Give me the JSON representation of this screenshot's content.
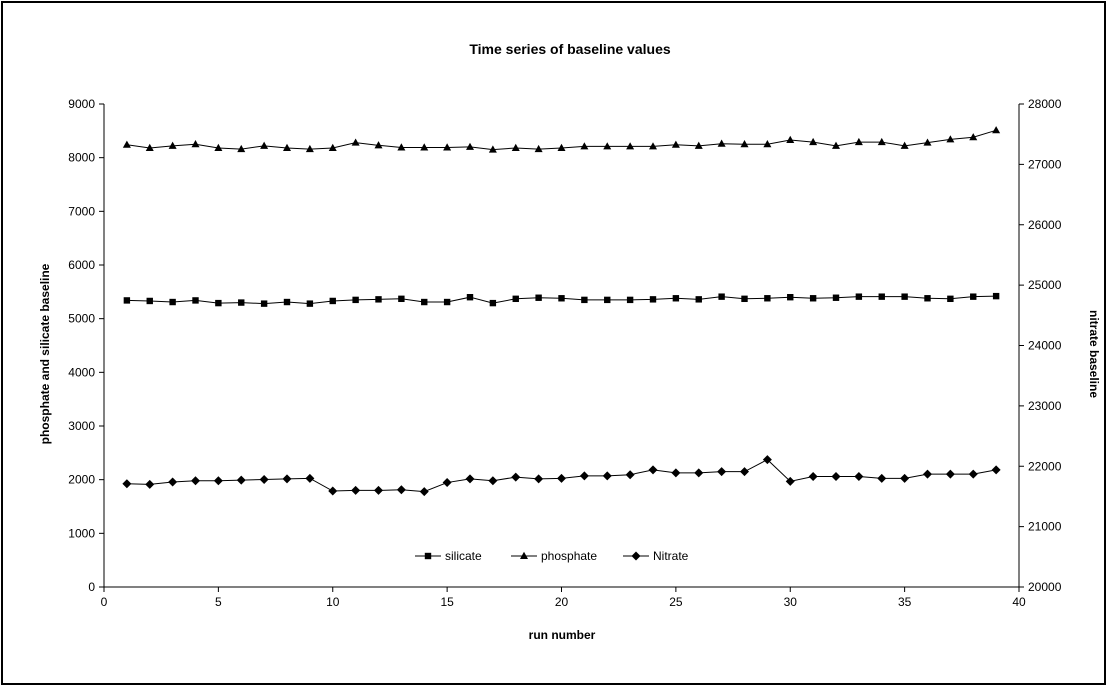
{
  "chart_data": {
    "type": "line",
    "title": "Time series of baseline values",
    "xlabel": "run number",
    "ylabel_left": "phosphate and silicate baseline",
    "ylabel_right": "nitrate baseline",
    "xlim": [
      0,
      40
    ],
    "ylim_left": [
      0,
      9000
    ],
    "ylim_right": [
      20000,
      28000
    ],
    "x_ticks": [
      "0",
      "5",
      "10",
      "15",
      "20",
      "25",
      "30",
      "35",
      "40"
    ],
    "y_ticks_left": [
      "0",
      "1000",
      "2000",
      "3000",
      "4000",
      "5000",
      "6000",
      "7000",
      "8000",
      "9000"
    ],
    "y_ticks_right": [
      "20000",
      "21000",
      "22000",
      "23000",
      "24000",
      "25000",
      "26000",
      "27000",
      "28000"
    ],
    "legend_position": "bottom-center",
    "grid": false,
    "x": [
      1,
      2,
      3,
      4,
      5,
      6,
      7,
      8,
      9,
      10,
      11,
      12,
      13,
      14,
      15,
      16,
      17,
      18,
      19,
      20,
      21,
      22,
      23,
      24,
      25,
      26,
      27,
      28,
      29,
      30,
      31,
      32,
      33,
      34,
      35,
      36,
      37,
      38,
      39
    ],
    "series": [
      {
        "name": "silicate",
        "axis": "left",
        "marker": "square",
        "values": [
          5340,
          5330,
          5310,
          5340,
          5290,
          5300,
          5280,
          5310,
          5280,
          5330,
          5350,
          5360,
          5370,
          5310,
          5310,
          5400,
          5290,
          5370,
          5390,
          5380,
          5350,
          5350,
          5350,
          5360,
          5380,
          5360,
          5410,
          5370,
          5380,
          5400,
          5380,
          5390,
          5410,
          5410,
          5410,
          5380,
          5370,
          5410,
          5420
        ]
      },
      {
        "name": "phosphate",
        "axis": "left",
        "marker": "triangle",
        "values": [
          8240,
          8180,
          8220,
          8250,
          8180,
          8160,
          8220,
          8180,
          8160,
          8180,
          8280,
          8230,
          8190,
          8190,
          8190,
          8200,
          8150,
          8180,
          8160,
          8180,
          8210,
          8210,
          8210,
          8210,
          8240,
          8220,
          8260,
          8250,
          8250,
          8330,
          8290,
          8220,
          8290,
          8290,
          8220,
          8280,
          8340,
          8380,
          8510
        ]
      },
      {
        "name": "Nitrate",
        "axis": "right",
        "marker": "diamond",
        "values": [
          21710,
          21700,
          21740,
          21760,
          21760,
          21770,
          21780,
          21790,
          21800,
          21590,
          21600,
          21600,
          21610,
          21580,
          21730,
          21790,
          21760,
          21820,
          21790,
          21800,
          21840,
          21840,
          21860,
          21940,
          21890,
          21890,
          21910,
          21910,
          22110,
          21750,
          21830,
          21830,
          21830,
          21800,
          21800,
          21870,
          21870,
          21870,
          21940
        ]
      }
    ]
  }
}
